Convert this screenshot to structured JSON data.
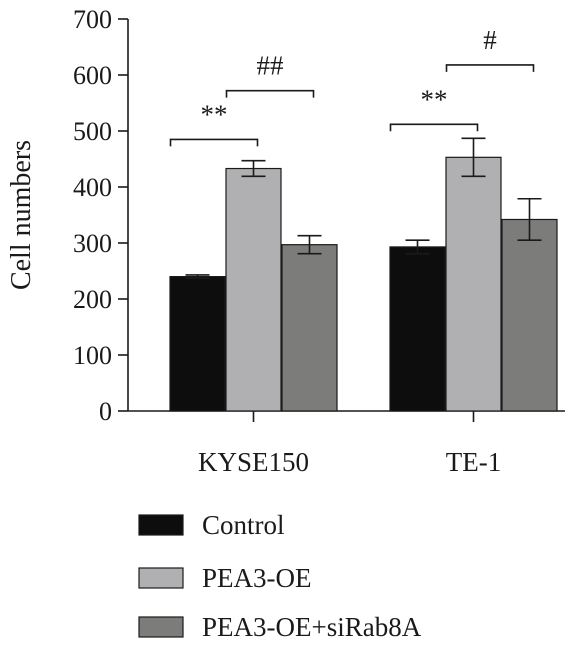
{
  "chart_data": {
    "type": "bar",
    "title": "",
    "xlabel": "",
    "ylabel": "Cell numbers",
    "ylim": [
      0,
      700
    ],
    "yticks": [
      0,
      100,
      200,
      300,
      400,
      500,
      600,
      700
    ],
    "grid": false,
    "legend_position": "bottom",
    "categories": [
      "KYSE150",
      "TE-1"
    ],
    "series": [
      {
        "name": "Control",
        "values": [
          240,
          293
        ],
        "errors": [
          3,
          12
        ],
        "color": "#0d0d0d"
      },
      {
        "name": "PEA3-OE",
        "values": [
          433,
          453
        ],
        "errors": [
          14,
          34
        ],
        "color": "#b0b0b2"
      },
      {
        "name": "PEA3-OE+siRab8A",
        "values": [
          297,
          342
        ],
        "errors": [
          16,
          37
        ],
        "color": "#7c7c7b"
      }
    ],
    "annotations": [
      {
        "category": 0,
        "from_series": 0,
        "to_series": 1,
        "label": "**",
        "y": 485
      },
      {
        "category": 0,
        "from_series": 1,
        "to_series": 2,
        "label": "##",
        "y": 572
      },
      {
        "category": 1,
        "from_series": 0,
        "to_series": 1,
        "label": "**",
        "y": 512
      },
      {
        "category": 1,
        "from_series": 1,
        "to_series": 2,
        "label": "#",
        "y": 618
      }
    ]
  }
}
